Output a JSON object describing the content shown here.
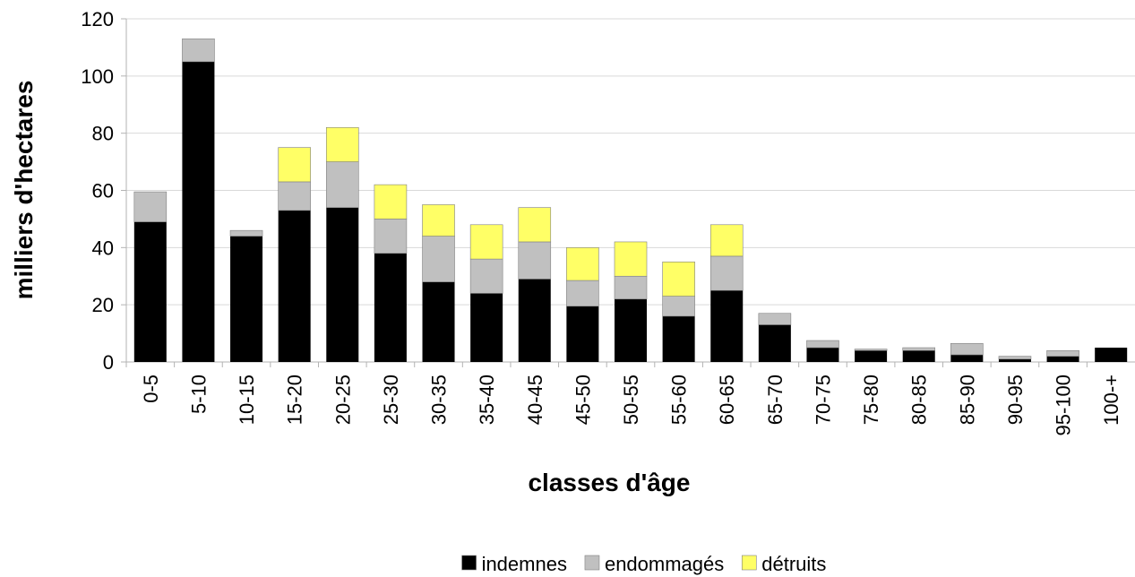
{
  "chart_data": {
    "type": "stacked_bar",
    "x_label": "classes d'âge",
    "y_label": "milliers d'hectares",
    "categories": [
      "0-5",
      "5-10",
      "10-15",
      "15-20",
      "20-25",
      "25-30",
      "30-35",
      "35-40",
      "40-45",
      "45-50",
      "50-55",
      "55-60",
      "60-65",
      "65-70",
      "70-75",
      "75-80",
      "80-85",
      "85-90",
      "90-95",
      "95-100",
      "100-+"
    ],
    "series": [
      {
        "name": "indemnes",
        "color": "#000000",
        "values": [
          49,
          105,
          44,
          53,
          54,
          38,
          28,
          24,
          29,
          19.5,
          22,
          16,
          25,
          13,
          5,
          4,
          4,
          2.5,
          1,
          2,
          5
        ]
      },
      {
        "name": "endommagés",
        "color": "#c0c0c0",
        "values": [
          10.5,
          8,
          2,
          10,
          16,
          12,
          16,
          12,
          13,
          9,
          8,
          7,
          12,
          4,
          2.5,
          0.5,
          1,
          4,
          1,
          2,
          0
        ]
      },
      {
        "name": "détruits",
        "color": "#ffff66",
        "values": [
          0,
          0,
          0,
          12,
          12,
          12,
          11,
          12,
          12,
          11.5,
          12,
          12,
          11,
          0,
          0,
          0,
          0,
          0,
          0,
          0,
          0
        ]
      }
    ],
    "ylim": [
      0,
      120
    ],
    "yticks": [
      0,
      20,
      40,
      60,
      80,
      100,
      120
    ],
    "grid": true,
    "legend": "bottom"
  }
}
